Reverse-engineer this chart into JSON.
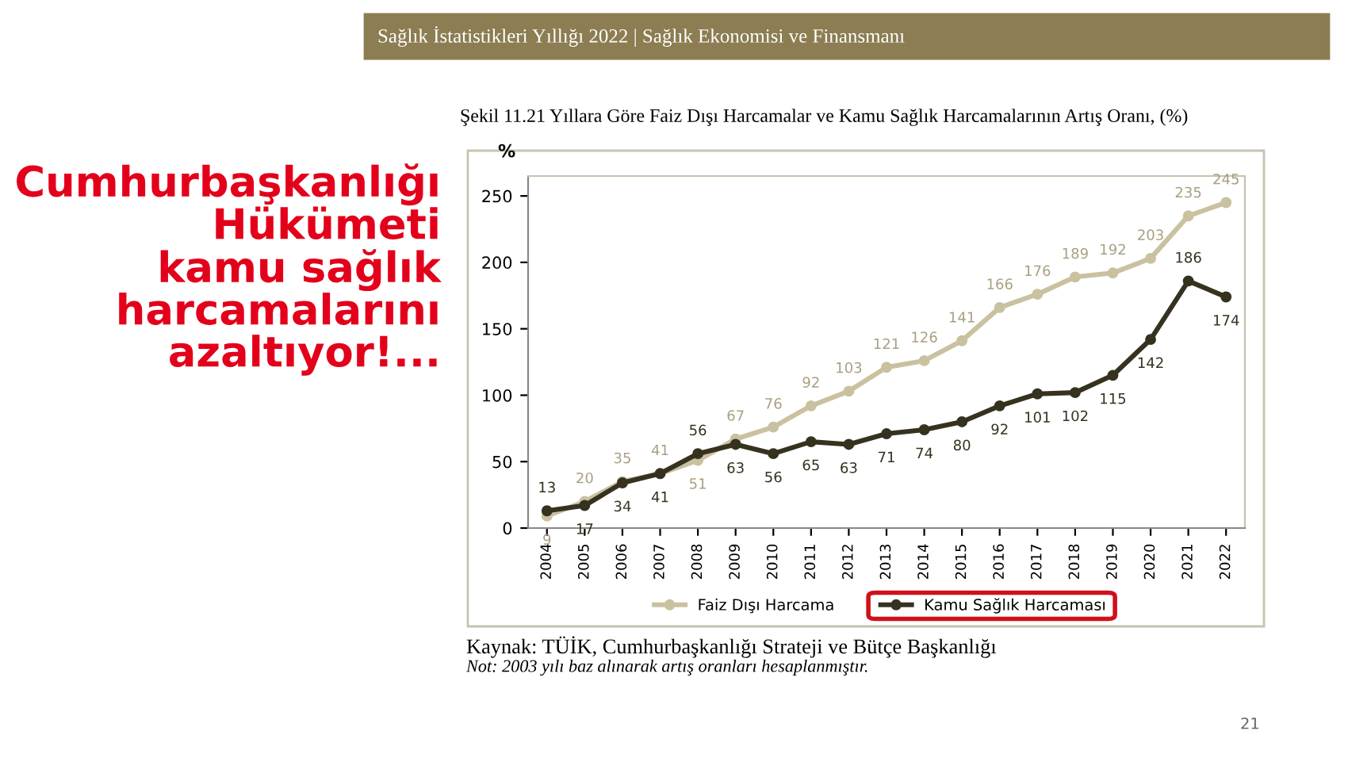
{
  "chart_data": {
    "type": "line",
    "title": "Şekil 11.21 Yıllara Göre Faiz Dışı Harcamalar ve Kamu Sağlık Harcamalarının Artış Oranı, (%)",
    "subtitle": "Sağlık İstatistikleri Yıllığı 2022 | Sağlık Ekonomisi ve Finansmanı",
    "ylabel": "%",
    "categories": [
      "2004",
      "2005",
      "2006",
      "2007",
      "2008",
      "2009",
      "2010",
      "2011",
      "2012",
      "2013",
      "2014",
      "2015",
      "2016",
      "2017",
      "2018",
      "2019",
      "2020",
      "2021",
      "2022"
    ],
    "series": [
      {
        "name": "Faiz Dışı Harcama",
        "color": "#c9c1a0",
        "values": [
          9,
          20,
          35,
          41,
          51,
          67,
          76,
          92,
          103,
          121,
          126,
          141,
          166,
          176,
          189,
          192,
          203,
          235,
          245
        ]
      },
      {
        "name": "Kamu Sağlık Harcaması",
        "color": "#36321f",
        "values": [
          13,
          17,
          34,
          41,
          56,
          63,
          56,
          65,
          63,
          71,
          74,
          80,
          92,
          101,
          102,
          115,
          142,
          186,
          174
        ]
      }
    ],
    "ylim": [
      0,
      265
    ],
    "yticks": [
      0,
      50,
      100,
      150,
      200,
      250
    ],
    "grid": false,
    "legend": "bottom",
    "marker": "circle",
    "line_style": "solid",
    "data_labels": true,
    "annotations": [
      "Cumhurbaşkanlığı\nHükümeti\nkamu sağlık\nharcamalarını\nazaltıyor!...",
      "Kaynak: TÜİK, Cumhurbaşkanlığı Strateji ve Bütçe Başkanlığı",
      "Not: 2003 yılı baz alınarak artış oranları hesaplanmıştır.",
      "21"
    ]
  }
}
